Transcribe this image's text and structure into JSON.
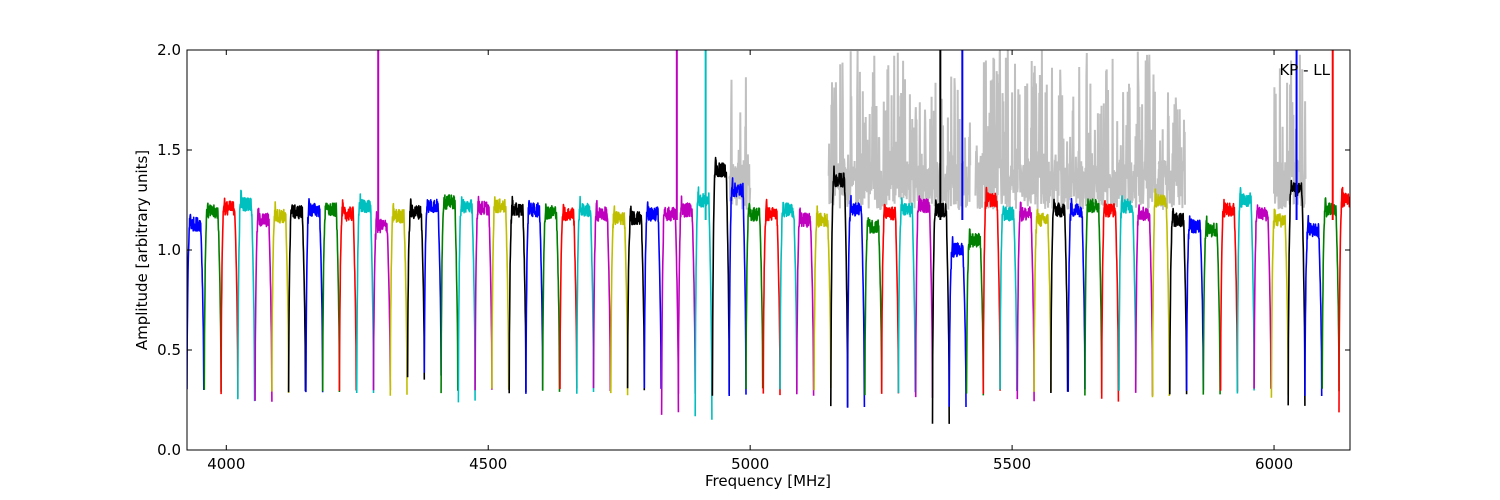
{
  "chart_data": {
    "type": "line",
    "title": "",
    "xlabel": "Frequency [MHz]",
    "ylabel": "Amplitude [arbitrary units]",
    "annotation": "KP - LL",
    "xlim": [
      3925,
      6145
    ],
    "ylim": [
      0.0,
      2.0
    ],
    "xticks": [
      4000,
      4500,
      5000,
      5500,
      6000
    ],
    "xtick_labels": [
      "4000",
      "4500",
      "5000",
      "5500",
      "6000"
    ],
    "yticks": [
      0.0,
      0.5,
      1.0,
      1.5,
      2.0
    ],
    "ytick_labels": [
      "0.0",
      "0.5",
      "1.0",
      "1.5",
      "2.0"
    ],
    "grid": false,
    "legend": "none",
    "colors": {
      "b": "#0000ff",
      "g": "#008000",
      "r": "#ff0000",
      "c": "#00bfbf",
      "m": "#bf00bf",
      "y": "#bfbf00",
      "k": "#000000",
      "gray": "#c0c0c0"
    },
    "channel_width_mhz": 32,
    "channel_starts_mhz": [
      3925,
      3958,
      3990,
      4022,
      4055,
      4087,
      4119,
      4152,
      4184,
      4216,
      4249,
      4281,
      4313,
      4346,
      4378,
      4410,
      4443,
      4475,
      4507,
      4540,
      4572,
      4604,
      4637,
      4669,
      4701,
      4734,
      4766,
      4798,
      4831,
      4863,
      4895,
      4928,
      4960,
      4992,
      5025,
      5057,
      5089,
      5122,
      5154,
      5186,
      5219,
      5251,
      5283,
      5316,
      5348,
      5380,
      5413,
      5445,
      5477,
      5510,
      5542,
      5574,
      5607,
      5639,
      5671,
      5704,
      5736,
      5768,
      5801,
      5833,
      5865,
      5898,
      5930,
      5962,
      5995,
      6027,
      6059,
      6092,
      6124
    ],
    "channel_colors": [
      "b",
      "g",
      "r",
      "c",
      "m",
      "y",
      "k",
      "b",
      "g",
      "r",
      "c",
      "m",
      "y",
      "k",
      "b",
      "g",
      "c",
      "m",
      "y",
      "k",
      "b",
      "g",
      "r",
      "c",
      "m",
      "y",
      "k",
      "b",
      "m",
      "m",
      "c",
      "k",
      "b",
      "g",
      "r",
      "c",
      "m",
      "y",
      "k",
      "b",
      "g",
      "r",
      "c",
      "m",
      "k",
      "b",
      "g",
      "r",
      "c",
      "m",
      "y",
      "k",
      "b",
      "g",
      "r",
      "c",
      "m",
      "y",
      "k",
      "b",
      "g",
      "r",
      "c",
      "m",
      "y",
      "k",
      "b",
      "g",
      "r"
    ],
    "channel_levels": [
      1.13,
      1.19,
      1.21,
      1.23,
      1.15,
      1.17,
      1.19,
      1.2,
      1.2,
      1.18,
      1.22,
      1.12,
      1.17,
      1.19,
      1.22,
      1.24,
      1.22,
      1.21,
      1.22,
      1.2,
      1.2,
      1.19,
      1.18,
      1.2,
      1.18,
      1.16,
      1.16,
      1.18,
      1.18,
      1.2,
      1.25,
      1.4,
      1.3,
      1.18,
      1.18,
      1.2,
      1.15,
      1.15,
      1.35,
      1.2,
      1.12,
      1.18,
      1.2,
      1.22,
      1.2,
      1.0,
      1.05,
      1.25,
      1.18,
      1.18,
      1.15,
      1.2,
      1.2,
      1.22,
      1.2,
      1.22,
      1.18,
      1.25,
      1.15,
      1.12,
      1.1,
      1.2,
      1.25,
      1.18,
      1.15,
      1.3,
      1.1,
      1.2,
      1.25
    ],
    "channel_min_amplitude": [
      0.3,
      0.3,
      0.27,
      0.25,
      0.25,
      0.29,
      0.29,
      0.29,
      0.3,
      0.3,
      0.29,
      0.29,
      0.28,
      0.36,
      0.38,
      0.29,
      0.24,
      0.3,
      0.3,
      0.29,
      0.29,
      0.3,
      0.3,
      0.29,
      0.3,
      0.28,
      0.3,
      0.3,
      0.18,
      0.28,
      0.16,
      0.27,
      0.28,
      0.3,
      0.28,
      0.3,
      0.28,
      0.3,
      0.21,
      0.22,
      0.28,
      0.28,
      0.29,
      0.27,
      0.14,
      0.22,
      0.28,
      0.29,
      0.3,
      0.25,
      0.3,
      0.29,
      0.3,
      0.28,
      0.25,
      0.3,
      0.28,
      0.27,
      0.28,
      0.3,
      0.28,
      0.3,
      0.29,
      0.3,
      0.27,
      0.22,
      0.28,
      0.3,
      0.18
    ],
    "rfi_spikes": [
      {
        "x": 4290,
        "y": 2.0,
        "color": "m"
      },
      {
        "x": 4860,
        "y": 2.0,
        "color": "m"
      },
      {
        "x": 4915,
        "y": 2.0,
        "color": "c"
      },
      {
        "x": 5363,
        "y": 2.0,
        "color": "k"
      },
      {
        "x": 5405,
        "y": 2.0,
        "color": "b"
      },
      {
        "x": 6043,
        "y": 2.0,
        "color": "b"
      },
      {
        "x": 6112,
        "y": 2.0,
        "color": "r"
      }
    ],
    "gray_background": {
      "color": "gray",
      "spike_regions": [
        [
          4960,
          5000,
          2.0
        ],
        [
          5150,
          5300,
          2.0
        ],
        [
          5300,
          5420,
          1.9
        ],
        [
          5430,
          5780,
          2.0
        ],
        [
          5780,
          5830,
          1.8
        ],
        [
          6000,
          6060,
          2.0
        ]
      ]
    }
  }
}
